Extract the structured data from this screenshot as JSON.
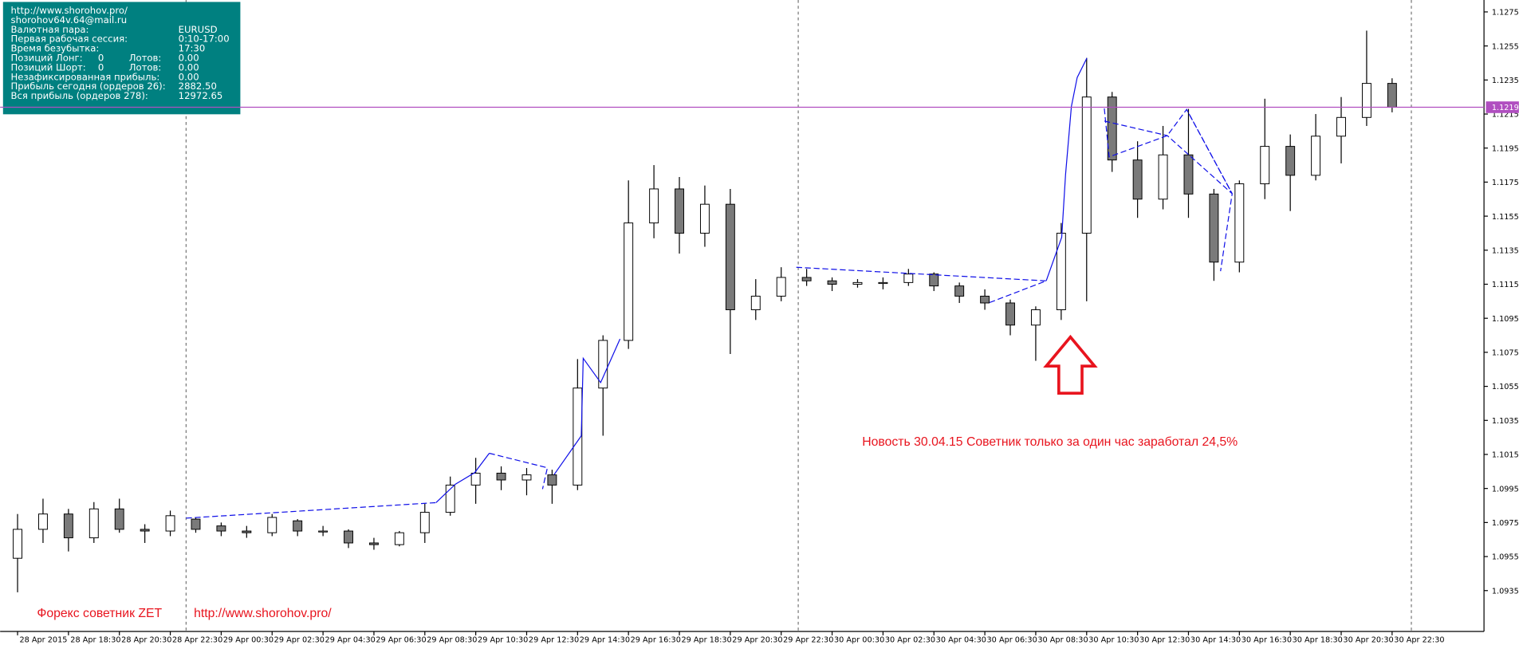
{
  "info_panel": {
    "rows": [
      [
        "http://www.shorohov.pro/"
      ],
      [
        "shorohov64v.64@mail.ru"
      ],
      [
        "Валютная пара:",
        "EURUSD"
      ],
      [
        "Первая рабочая сессия:",
        "0:10-17:00"
      ],
      [
        "Время безубытка:",
        "17:30"
      ],
      [
        "Позиций Лонг:",
        "0",
        "Лотов:",
        "0.00"
      ],
      [
        "Позиций Шорт:",
        "0",
        "Лотов:",
        "0.00"
      ],
      [
        "Незафиксированная прибыль:",
        "0.00"
      ],
      [
        "Прибыль сегодня (ордеров 26):",
        "2882.50"
      ],
      [
        "Вся прибыль (ордеров 278):",
        "12972.65"
      ]
    ]
  },
  "chart_data": {
    "type": "candlestick",
    "categories": [
      "28 Apr 2015",
      null,
      "28 Apr 18:30",
      null,
      "28 Apr 20:30",
      null,
      "28 Apr 22:30",
      null,
      "29 Apr 00:30",
      null,
      "29 Apr 02:30",
      null,
      "29 Apr 04:30",
      null,
      "29 Apr 06:30",
      null,
      "29 Apr 08:30",
      null,
      "29 Apr 10:30",
      null,
      "29 Apr 12:30",
      null,
      "29 Apr 14:30",
      null,
      "29 Apr 16:30",
      null,
      "29 Apr 18:30",
      null,
      "29 Apr 20:30",
      null,
      "29 Apr 22:30",
      null,
      "30 Apr 00:30",
      null,
      "30 Apr 02:30",
      null,
      "30 Apr 04:30",
      null,
      "30 Apr 06:30",
      null,
      "30 Apr 08:30",
      null,
      "30 Apr 10:30",
      null,
      "30 Apr 12:30",
      null,
      "30 Apr 14:30",
      null,
      "30 Apr 16:30",
      null,
      "30 Apr 18:30",
      null,
      "30 Apr 20:30",
      null,
      "30 Apr 22:30"
    ],
    "open": [
      1.0954,
      1.0971,
      1.098,
      1.0966,
      1.0983,
      1.0971,
      1.097,
      1.0977,
      1.0973,
      1.097,
      1.0969,
      1.0976,
      1.097,
      1.097,
      1.0963,
      1.0962,
      1.0969,
      1.0981,
      1.0997,
      1.1004,
      1.1,
      1.1003,
      1.0997,
      1.1054,
      1.1082,
      1.1151,
      1.1171,
      1.1145,
      1.1162,
      1.11,
      1.1108,
      1.1119,
      1.1117,
      1.1115,
      1.1116,
      1.1116,
      1.1121,
      1.1114,
      1.1108,
      1.1104,
      1.1091,
      1.11,
      1.1145,
      1.1225,
      1.1188,
      1.1165,
      1.1191,
      1.1168,
      1.1128,
      1.1174,
      1.1196,
      1.1179,
      1.1202,
      1.1213,
      1.1233
    ],
    "high": [
      1.098,
      1.0989,
      1.0983,
      1.0987,
      1.0989,
      1.0974,
      1.0982,
      1.0978,
      1.0975,
      1.0973,
      1.098,
      1.0977,
      1.0973,
      1.0971,
      1.0966,
      1.097,
      1.0986,
      1.1002,
      1.1013,
      1.1008,
      1.1007,
      1.1006,
      1.1071,
      1.1085,
      1.1176,
      1.1185,
      1.1178,
      1.1173,
      1.1171,
      1.1118,
      1.1125,
      1.1124,
      1.1119,
      1.1118,
      1.1119,
      1.1124,
      1.1122,
      1.1116,
      1.1112,
      1.1106,
      1.1102,
      1.1151,
      1.1248,
      1.1228,
      1.1199,
      1.1208,
      1.1218,
      1.1171,
      1.1176,
      1.1224,
      1.1203,
      1.1215,
      1.1225,
      1.1264,
      1.1236
    ],
    "low": [
      1.0934,
      1.0963,
      1.0958,
      1.0963,
      1.0969,
      1.0963,
      1.0967,
      1.0969,
      1.0967,
      1.0966,
      1.0967,
      1.0967,
      1.0967,
      1.096,
      1.0959,
      1.0961,
      1.0963,
      1.0979,
      1.0986,
      1.0994,
      1.0991,
      1.0986,
      1.0994,
      1.1026,
      1.1077,
      1.1142,
      1.1133,
      1.1137,
      1.1074,
      1.1094,
      1.1105,
      1.1114,
      1.1111,
      1.1113,
      1.1112,
      1.1114,
      1.1111,
      1.1104,
      1.11,
      1.1085,
      1.107,
      1.1094,
      1.1105,
      1.1181,
      1.1154,
      1.1159,
      1.1154,
      1.1117,
      1.1122,
      1.1165,
      1.1158,
      1.1176,
      1.1186,
      1.1208,
      1.1216
    ],
    "close": [
      1.0971,
      1.098,
      1.0966,
      1.0983,
      1.0971,
      1.097,
      1.0979,
      1.0971,
      1.097,
      1.0969,
      1.0978,
      1.097,
      1.097,
      1.0963,
      1.0962,
      1.0969,
      1.0981,
      1.0997,
      1.1004,
      1.1,
      1.1003,
      1.0997,
      1.1054,
      1.1082,
      1.1151,
      1.1171,
      1.1145,
      1.1162,
      1.11,
      1.1108,
      1.1119,
      1.1117,
      1.1115,
      1.1116,
      1.1116,
      1.1121,
      1.1114,
      1.1108,
      1.1104,
      1.1091,
      1.11,
      1.1145,
      1.1225,
      1.1188,
      1.1165,
      1.1191,
      1.1168,
      1.1128,
      1.1174,
      1.1196,
      1.1179,
      1.1202,
      1.1213,
      1.1233,
      1.1219
    ],
    "up_color": "#ffffff",
    "down_color": "#7a7a7a",
    "ylim": [
      1.0911,
      1.1282
    ],
    "yticks": [
      1.0935,
      1.0955,
      1.0975,
      1.0995,
      1.1015,
      1.1035,
      1.1055,
      1.1075,
      1.1095,
      1.1115,
      1.1135,
      1.1155,
      1.1175,
      1.1195,
      1.1215,
      1.1235,
      1.1255,
      1.1275
    ],
    "price_line": 1.1219,
    "price_line_color": "#b04ec0",
    "annotations": [
      "Новость 30.04.15  Советник только за один час заработал 24,5%",
      "Форекс советник ZET",
      "http://www.shorohov.pro/"
    ]
  }
}
